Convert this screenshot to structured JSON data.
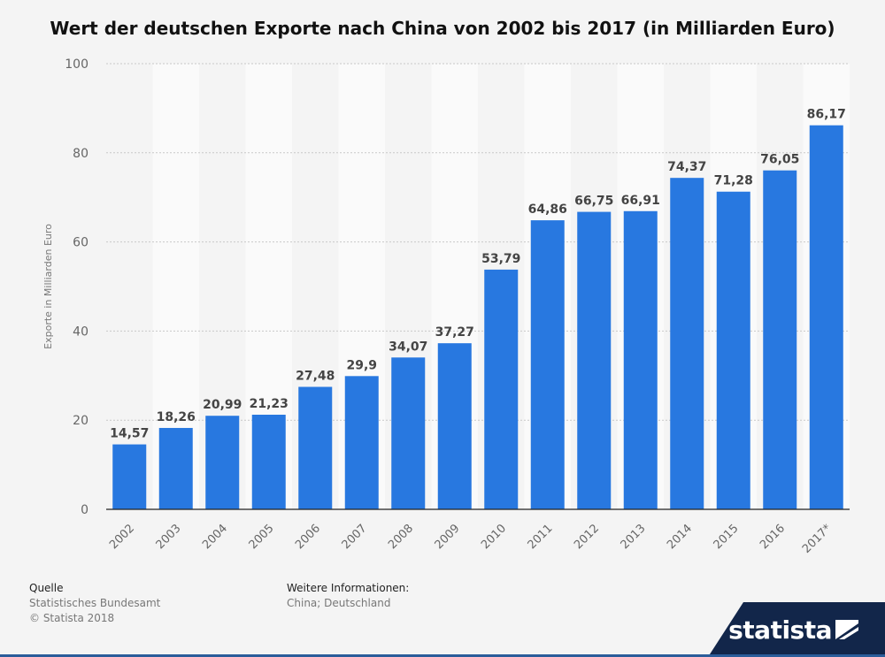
{
  "chart_data": {
    "type": "bar",
    "title": "Wert der deutschen Exporte nach China von 2002 bis 2017 (in Milliarden Euro)",
    "ylabel": "Exporte in Milliarden Euro",
    "xlabel": "",
    "ylim": [
      0,
      100
    ],
    "yticks": [
      "0",
      "20",
      "40",
      "60",
      "80",
      "100"
    ],
    "categories": [
      "2002",
      "2003",
      "2004",
      "2005",
      "2006",
      "2007",
      "2008",
      "2009",
      "2010",
      "2011",
      "2012",
      "2013",
      "2014",
      "2015",
      "2016",
      "2017*"
    ],
    "values": [
      14.57,
      18.26,
      20.99,
      21.23,
      27.48,
      29.9,
      34.07,
      37.27,
      53.79,
      64.86,
      66.75,
      66.91,
      74.37,
      71.28,
      76.05,
      86.17
    ],
    "value_labels": [
      "14,57",
      "18,26",
      "20,99",
      "21,23",
      "27,48",
      "29,9",
      "34,07",
      "37,27",
      "53,79",
      "64,86",
      "66,75",
      "66,91",
      "74,37",
      "71,28",
      "76,05",
      "86,17"
    ],
    "grid": true,
    "bar_color": "#2878e0"
  },
  "footer": {
    "source_heading": "Quelle",
    "source": "Statistisches Bundesamt",
    "copyright": "© Statista 2018",
    "info_heading": "Weitere Informationen:",
    "info": "China; Deutschland"
  },
  "brand": {
    "name": "statista",
    "color": "#12264a"
  }
}
